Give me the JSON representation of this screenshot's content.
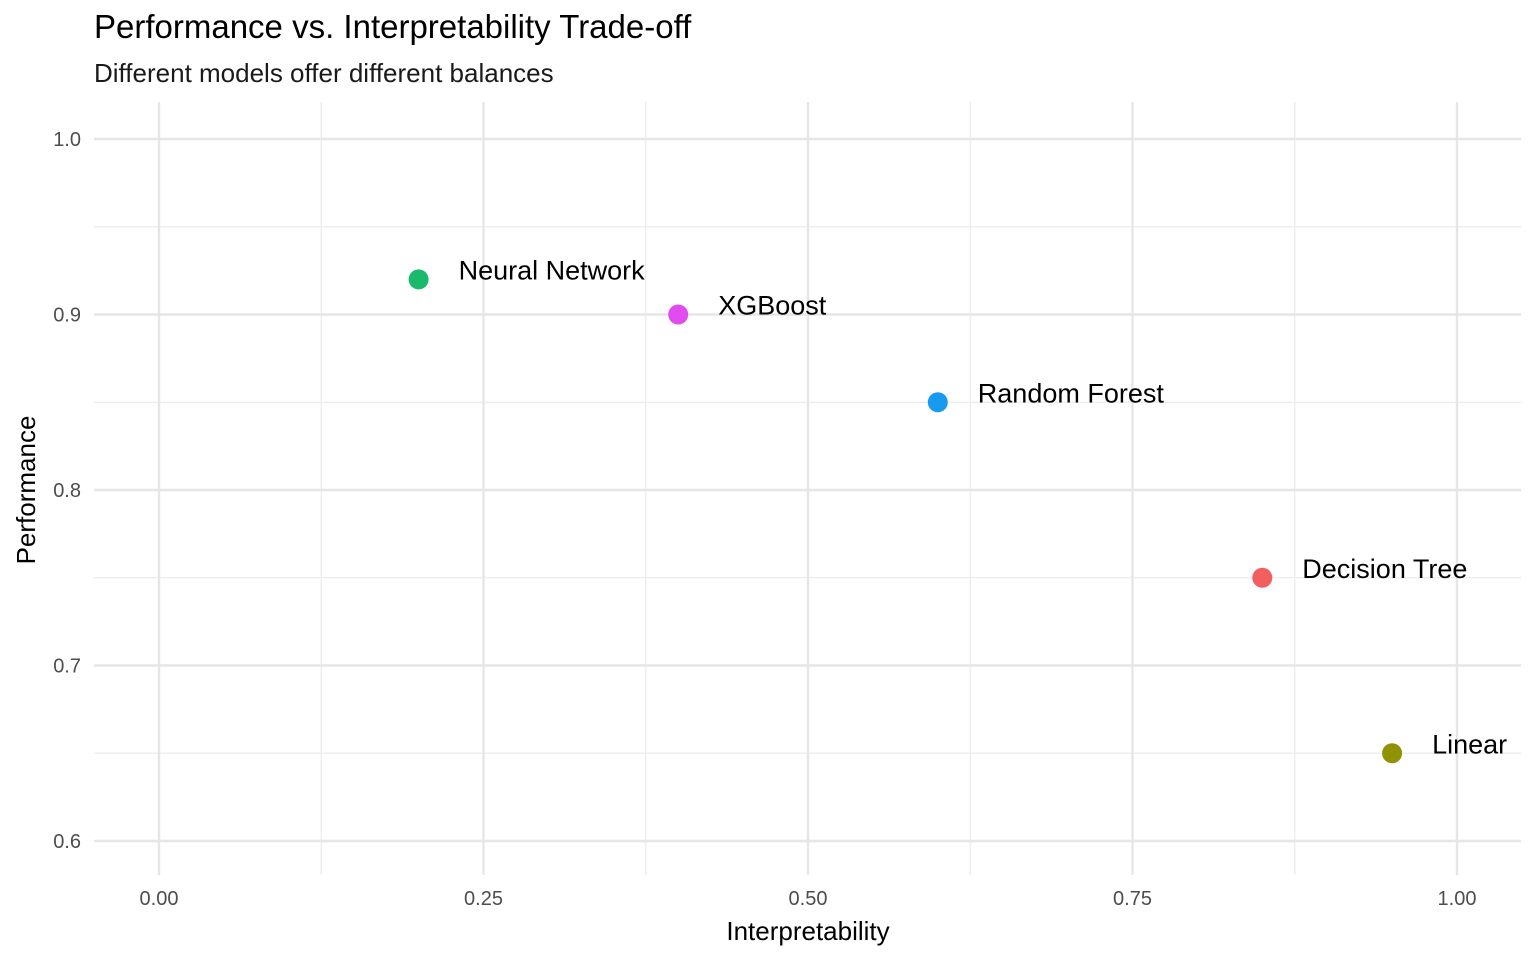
{
  "chart_data": {
    "type": "scatter",
    "title": "Performance vs. Interpretability Trade-off",
    "subtitle": "Different models offer different balances",
    "xlabel": "Interpretability",
    "ylabel": "Performance",
    "xlim": [
      -0.05,
      1.05
    ],
    "ylim": [
      0.585,
      1.02
    ],
    "x_ticks": [
      0,
      0.25,
      0.5,
      0.75,
      1
    ],
    "x_tick_labels": [
      "0.00",
      "0.25",
      "0.50",
      "0.75",
      "1.00"
    ],
    "y_ticks": [
      0.6,
      0.7,
      0.8,
      0.9,
      1.0
    ],
    "y_tick_labels": [
      "0.6",
      "0.7",
      "0.8",
      "0.9",
      "1.0"
    ],
    "grid": true,
    "legend": "none",
    "points": [
      {
        "label": "Neural Network",
        "x": 0.2,
        "y": 0.92,
        "color": "#1ABA6C"
      },
      {
        "label": "XGBoost",
        "x": 0.4,
        "y": 0.9,
        "color": "#E14CF0"
      },
      {
        "label": "Random Forest",
        "x": 0.6,
        "y": 0.85,
        "color": "#169BF0"
      },
      {
        "label": "Decision Tree",
        "x": 0.85,
        "y": 0.75,
        "color": "#F15F60"
      },
      {
        "label": "Linear",
        "x": 0.95,
        "y": 0.65,
        "color": "#909200"
      }
    ]
  }
}
